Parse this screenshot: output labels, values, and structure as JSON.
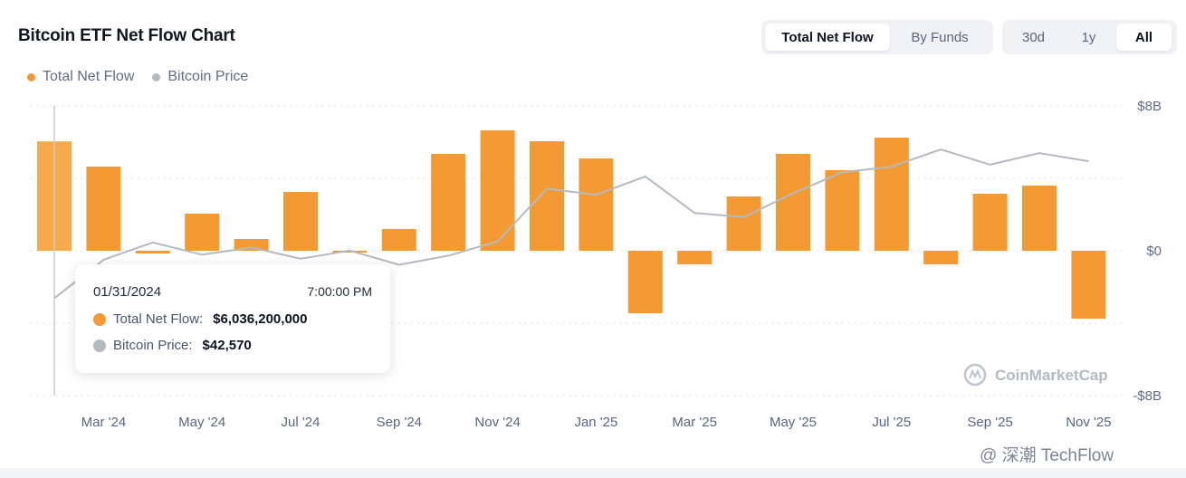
{
  "title": "Bitcoin ETF Net Flow Chart",
  "legend": {
    "flow_label": "Total Net Flow",
    "price_label": "Bitcoin Price"
  },
  "toggles": {
    "metric": [
      "Total Net Flow",
      "By Funds"
    ],
    "metric_selected": "Total Net Flow",
    "range": [
      "30d",
      "1y",
      "All"
    ],
    "range_selected": "All"
  },
  "colors": {
    "flow": "#f39a35",
    "flow_highlight": "#f7aa4a",
    "price": "#b5b9c0",
    "grid": "#e6e8ec"
  },
  "tooltip": {
    "date": "01/31/2024",
    "time": "7:00:00 PM",
    "flow_label": "Total Net Flow:",
    "flow_value": "$6,036,200,000",
    "price_label": "Bitcoin Price:",
    "price_value": "$42,570"
  },
  "watermark": "CoinMarketCap",
  "footer_watermark": "@ 深潮 TechFlow",
  "chart_data": {
    "type": "bar",
    "y_unit": "USD billions",
    "ylim": [
      -8,
      8
    ],
    "y_ticks": [
      "$8B",
      "$0",
      "-$8B"
    ],
    "x_ticks": [
      "Mar '24",
      "May '24",
      "Jul '24",
      "Sep '24",
      "Nov '24",
      "Jan '25",
      "Mar '25",
      "May '25",
      "Jul '25",
      "Sep '25",
      "Nov '25"
    ],
    "categories": [
      "Jan 2024",
      "Feb 2024",
      "Mar 2024",
      "Apr 2024",
      "May 2024",
      "Jun 2024",
      "Jul 2024",
      "Aug 2024",
      "Sep 2024",
      "Oct 2024",
      "Nov 2024",
      "Dec 2024",
      "Jan 2025",
      "Feb 2025",
      "Mar 2025",
      "Apr 2025",
      "May 2025",
      "Jun 2025",
      "Jul 2025",
      "Aug 2025",
      "Sep 2025",
      "Oct 2025"
    ],
    "series": [
      {
        "name": "Total Net Flow",
        "values": [
          6.04,
          4.65,
          -0.15,
          2.05,
          0.65,
          3.25,
          -0.05,
          1.2,
          5.35,
          6.65,
          6.05,
          5.1,
          -3.45,
          -0.75,
          3.0,
          5.35,
          4.45,
          6.25,
          -0.75,
          3.15,
          3.6,
          -3.75
        ]
      },
      {
        "name": "Bitcoin Price",
        "values": [
          42570,
          61500,
          70000,
          64000,
          67500,
          62000,
          66000,
          59000,
          63500,
          70500,
          96500,
          93500,
          102500,
          84500,
          82500,
          94200,
          104600,
          107300,
          115800,
          108300,
          114000,
          110000
        ]
      }
    ],
    "highlighted_index": 0,
    "grid": true,
    "legend_position": "top-left"
  }
}
